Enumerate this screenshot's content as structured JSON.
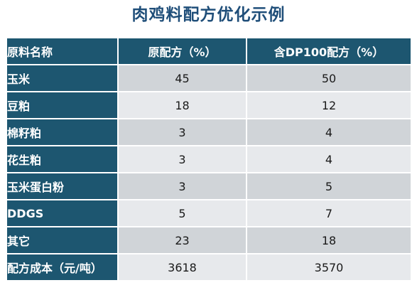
{
  "title": "肉鸡料配方优化示例",
  "table": {
    "headers": [
      "原料名称",
      "原配方（%）",
      "含DP100配方（%）"
    ],
    "rows": [
      {
        "name": "玉米",
        "original": "45",
        "dp100": "50"
      },
      {
        "name": "豆粕",
        "original": "18",
        "dp100": "12"
      },
      {
        "name": "棉籽粕",
        "original": "3",
        "dp100": "4"
      },
      {
        "name": "花生粕",
        "original": "3",
        "dp100": "4"
      },
      {
        "name": "玉米蛋白粉",
        "original": "3",
        "dp100": "5"
      },
      {
        "name": "DDGS",
        "original": "5",
        "dp100": "7"
      },
      {
        "name": "其它",
        "original": "23",
        "dp100": "18"
      },
      {
        "name": "配方成本（元/吨）",
        "original": "3618",
        "dp100": "3570"
      }
    ]
  },
  "colors": {
    "header_bg": "#1d5670",
    "title": "#1f4e79",
    "row_odd": "#d0d4d8",
    "row_even": "#e7e9ec"
  }
}
